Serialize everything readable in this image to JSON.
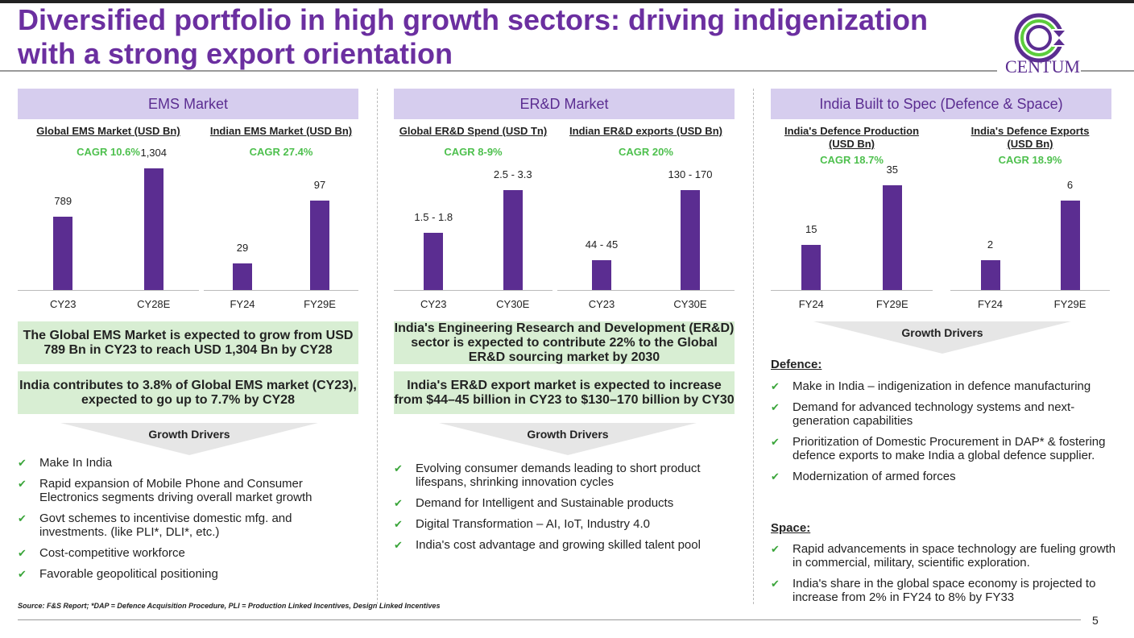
{
  "title": "Diversified portfolio in high growth sectors: driving indigenization with a strong export orientation",
  "logo": "CENTUM",
  "sections": [
    {
      "header": "EMS Market",
      "highlights": [
        "The Global EMS Market is expected to grow from USD 789 Bn in CY23 to reach USD 1,304 Bn by CY28",
        "India contributes to 3.8% of Global EMS market (CY23), expected to go up to 7.7% by CY28"
      ],
      "drivers_label": "Growth Drivers",
      "drivers": [
        "Make In India",
        "Rapid expansion of Mobile Phone and Consumer Electronics segments driving overall market growth",
        "Govt schemes to incentivise domestic mfg. and investments. (like PLI*, DLI*, etc.)",
        "Cost-competitive workforce",
        "Favorable geopolitical positioning"
      ]
    },
    {
      "header": "ER&D Market",
      "highlights": [
        "India's Engineering Research and Development (ER&D) sector is expected to contribute 22% to the Global ER&D sourcing market by 2030",
        "India's ER&D export market is expected to increase from $44–45 billion in CY23 to $130–170 billion by CY30"
      ],
      "drivers_label": "Growth Drivers",
      "drivers": [
        "Evolving consumer demands leading to short product lifespans, shrinking innovation cycles",
        "Demand for Intelligent and Sustainable products",
        "Digital Transformation – AI, IoT, Industry 4.0",
        "India's cost advantage and growing skilled talent pool"
      ]
    },
    {
      "header": "India Built to Spec (Defence & Space)",
      "drivers_label": "Growth Drivers",
      "defence_label": "Defence:",
      "defence": [
        "Make in India – indigenization in defence manufacturing",
        "Demand for advanced technology systems and next-generation capabilities",
        "Prioritization of Domestic Procurement in DAP* & fostering defence exports to make India a global defence supplier.",
        "Modernization of armed forces"
      ],
      "space_label": "Space:",
      "space": [
        "Rapid advancements in space technology are fueling growth in commercial, military, scientific exploration.",
        "India's share in the global space economy is projected to increase from 2% in FY24 to 8% by FY33"
      ]
    }
  ],
  "chart_data": [
    {
      "type": "bar",
      "title": "Global EMS Market (USD Bn)",
      "cagr": "CAGR 10.6%",
      "categories": [
        "CY23",
        "CY28E"
      ],
      "labels": [
        "789",
        "1,304"
      ],
      "values": [
        789,
        1304
      ]
    },
    {
      "type": "bar",
      "title": "Indian EMS Market (USD Bn)",
      "cagr": "CAGR 27.4%",
      "categories": [
        "FY24",
        "FY29E"
      ],
      "labels": [
        "29",
        "97"
      ],
      "values": [
        29,
        97
      ]
    },
    {
      "type": "bar",
      "title": "Global ER&D Spend (USD Tn)",
      "cagr": "CAGR 8-9%",
      "categories": [
        "CY23",
        "CY30E"
      ],
      "labels": [
        "1.5 - 1.8",
        "2.5 - 3.3"
      ],
      "values": [
        1.65,
        2.9
      ]
    },
    {
      "type": "bar",
      "title": "Indian ER&D exports (USD Bn)",
      "cagr": "CAGR 20%",
      "categories": [
        "CY23",
        "CY30E"
      ],
      "labels": [
        "44 - 45",
        "130 - 170"
      ],
      "values": [
        44.5,
        150
      ]
    },
    {
      "type": "bar",
      "title": "India's Defence Production (USD Bn)",
      "cagr": "CAGR 18.7%",
      "categories": [
        "FY24",
        "FY29E"
      ],
      "labels": [
        "15",
        "35"
      ],
      "values": [
        15,
        35
      ]
    },
    {
      "type": "bar",
      "title": "India's Defence Exports (USD Bn)",
      "cagr": "CAGR 18.9%",
      "categories": [
        "FY24",
        "FY29E"
      ],
      "labels": [
        "2",
        "6"
      ],
      "values": [
        2,
        6
      ]
    }
  ],
  "source": "Source: F&S Report; *DAP = Defence Acquisition Procedure, PLI = Production Linked Incentives, Design Linked Incentives",
  "page_number": "5"
}
